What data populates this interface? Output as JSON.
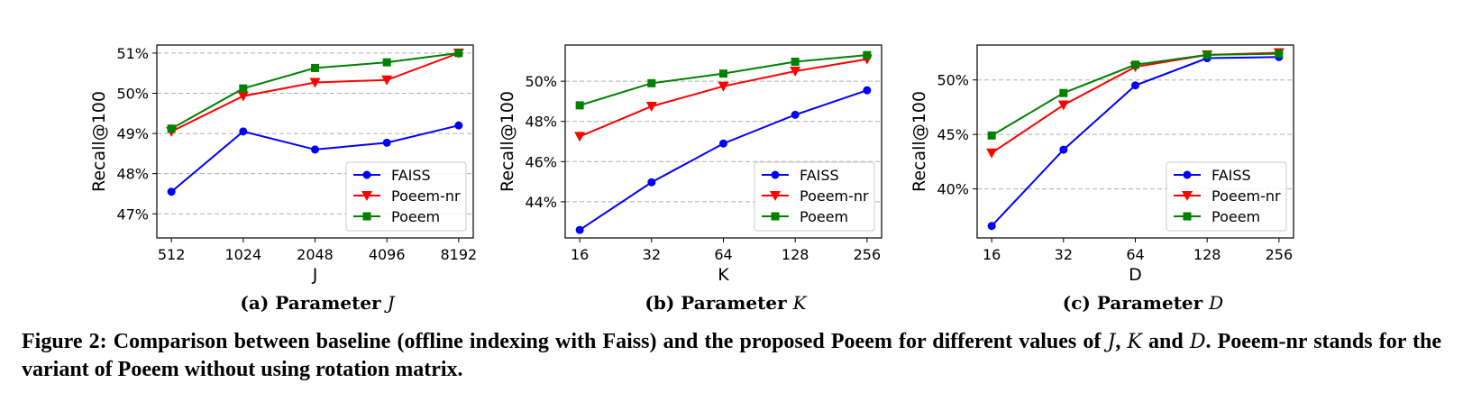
{
  "chart_data": [
    {
      "type": "line",
      "xlabel": "J",
      "ylabel": "Recall@100",
      "categories": [
        "512",
        "1024",
        "2048",
        "4096",
        "8192"
      ],
      "ylim": [
        46.4,
        51.2
      ],
      "yticks": [
        47,
        48,
        49,
        50,
        51
      ],
      "ytick_labels": [
        "47%",
        "48%",
        "49%",
        "50%",
        "51%"
      ],
      "grid": "horizontal dashed",
      "legend": "bottom-right",
      "series": [
        {
          "name": "FAISS",
          "values": [
            47.55,
            49.05,
            48.6,
            48.77,
            49.2
          ],
          "color": "#0000ff",
          "marker": "circle"
        },
        {
          "name": "Poeem-nr",
          "values": [
            49.05,
            49.93,
            50.27,
            50.33,
            51.0
          ],
          "color": "#ff0000",
          "marker": "triangle-down"
        },
        {
          "name": "Poeem",
          "values": [
            49.12,
            50.12,
            50.63,
            50.77,
            51.0
          ],
          "color": "#008000",
          "marker": "square"
        }
      ],
      "caption": {
        "prefix": "(a) Parameter ",
        "param": "J"
      }
    },
    {
      "type": "line",
      "xlabel": "K",
      "ylabel": "Recall@100",
      "categories": [
        "16",
        "32",
        "64",
        "128",
        "256"
      ],
      "ylim": [
        42.2,
        51.8
      ],
      "yticks": [
        44,
        46,
        48,
        50
      ],
      "ytick_labels": [
        "44%",
        "46%",
        "48%",
        "50%"
      ],
      "grid": "horizontal dashed",
      "legend": "bottom-right",
      "series": [
        {
          "name": "FAISS",
          "values": [
            42.6,
            44.97,
            46.9,
            48.33,
            49.55
          ],
          "color": "#0000ff",
          "marker": "circle"
        },
        {
          "name": "Poeem-nr",
          "values": [
            47.25,
            48.75,
            49.75,
            50.5,
            51.1
          ],
          "color": "#ff0000",
          "marker": "triangle-down"
        },
        {
          "name": "Poeem",
          "values": [
            48.8,
            49.9,
            50.38,
            50.97,
            51.3
          ],
          "color": "#008000",
          "marker": "square"
        }
      ],
      "caption": {
        "prefix": "(b) Parameter ",
        "param": "K"
      }
    },
    {
      "type": "line",
      "xlabel": "D",
      "ylabel": "Recall@100",
      "categories": [
        "16",
        "32",
        "64",
        "128",
        "256"
      ],
      "ylim": [
        35.5,
        53.2
      ],
      "yticks": [
        40,
        45,
        50
      ],
      "ytick_labels": [
        "40%",
        "45%",
        "50%"
      ],
      "grid": "horizontal dashed",
      "legend": "bottom-right",
      "series": [
        {
          "name": "FAISS",
          "values": [
            36.6,
            43.6,
            49.5,
            52.0,
            52.1
          ],
          "color": "#0000ff",
          "marker": "circle"
        },
        {
          "name": "Poeem-nr",
          "values": [
            43.3,
            47.7,
            51.2,
            52.3,
            52.5
          ],
          "color": "#ff0000",
          "marker": "triangle-down"
        },
        {
          "name": "Poeem",
          "values": [
            44.9,
            48.8,
            51.4,
            52.3,
            52.4
          ],
          "color": "#008000",
          "marker": "square"
        }
      ],
      "caption": {
        "prefix": "(c) Parameter ",
        "param": "D"
      }
    }
  ],
  "figure_caption": {
    "part1": "Figure 2: Comparison between baseline (offline indexing with Faiss) and the proposed Poeem for different values of ",
    "j": "J",
    "comma": ", ",
    "k": "K",
    "and": " and ",
    "d": "D",
    "part2": ". Poeem-nr stands for the variant of Poeem without using rotation matrix."
  }
}
